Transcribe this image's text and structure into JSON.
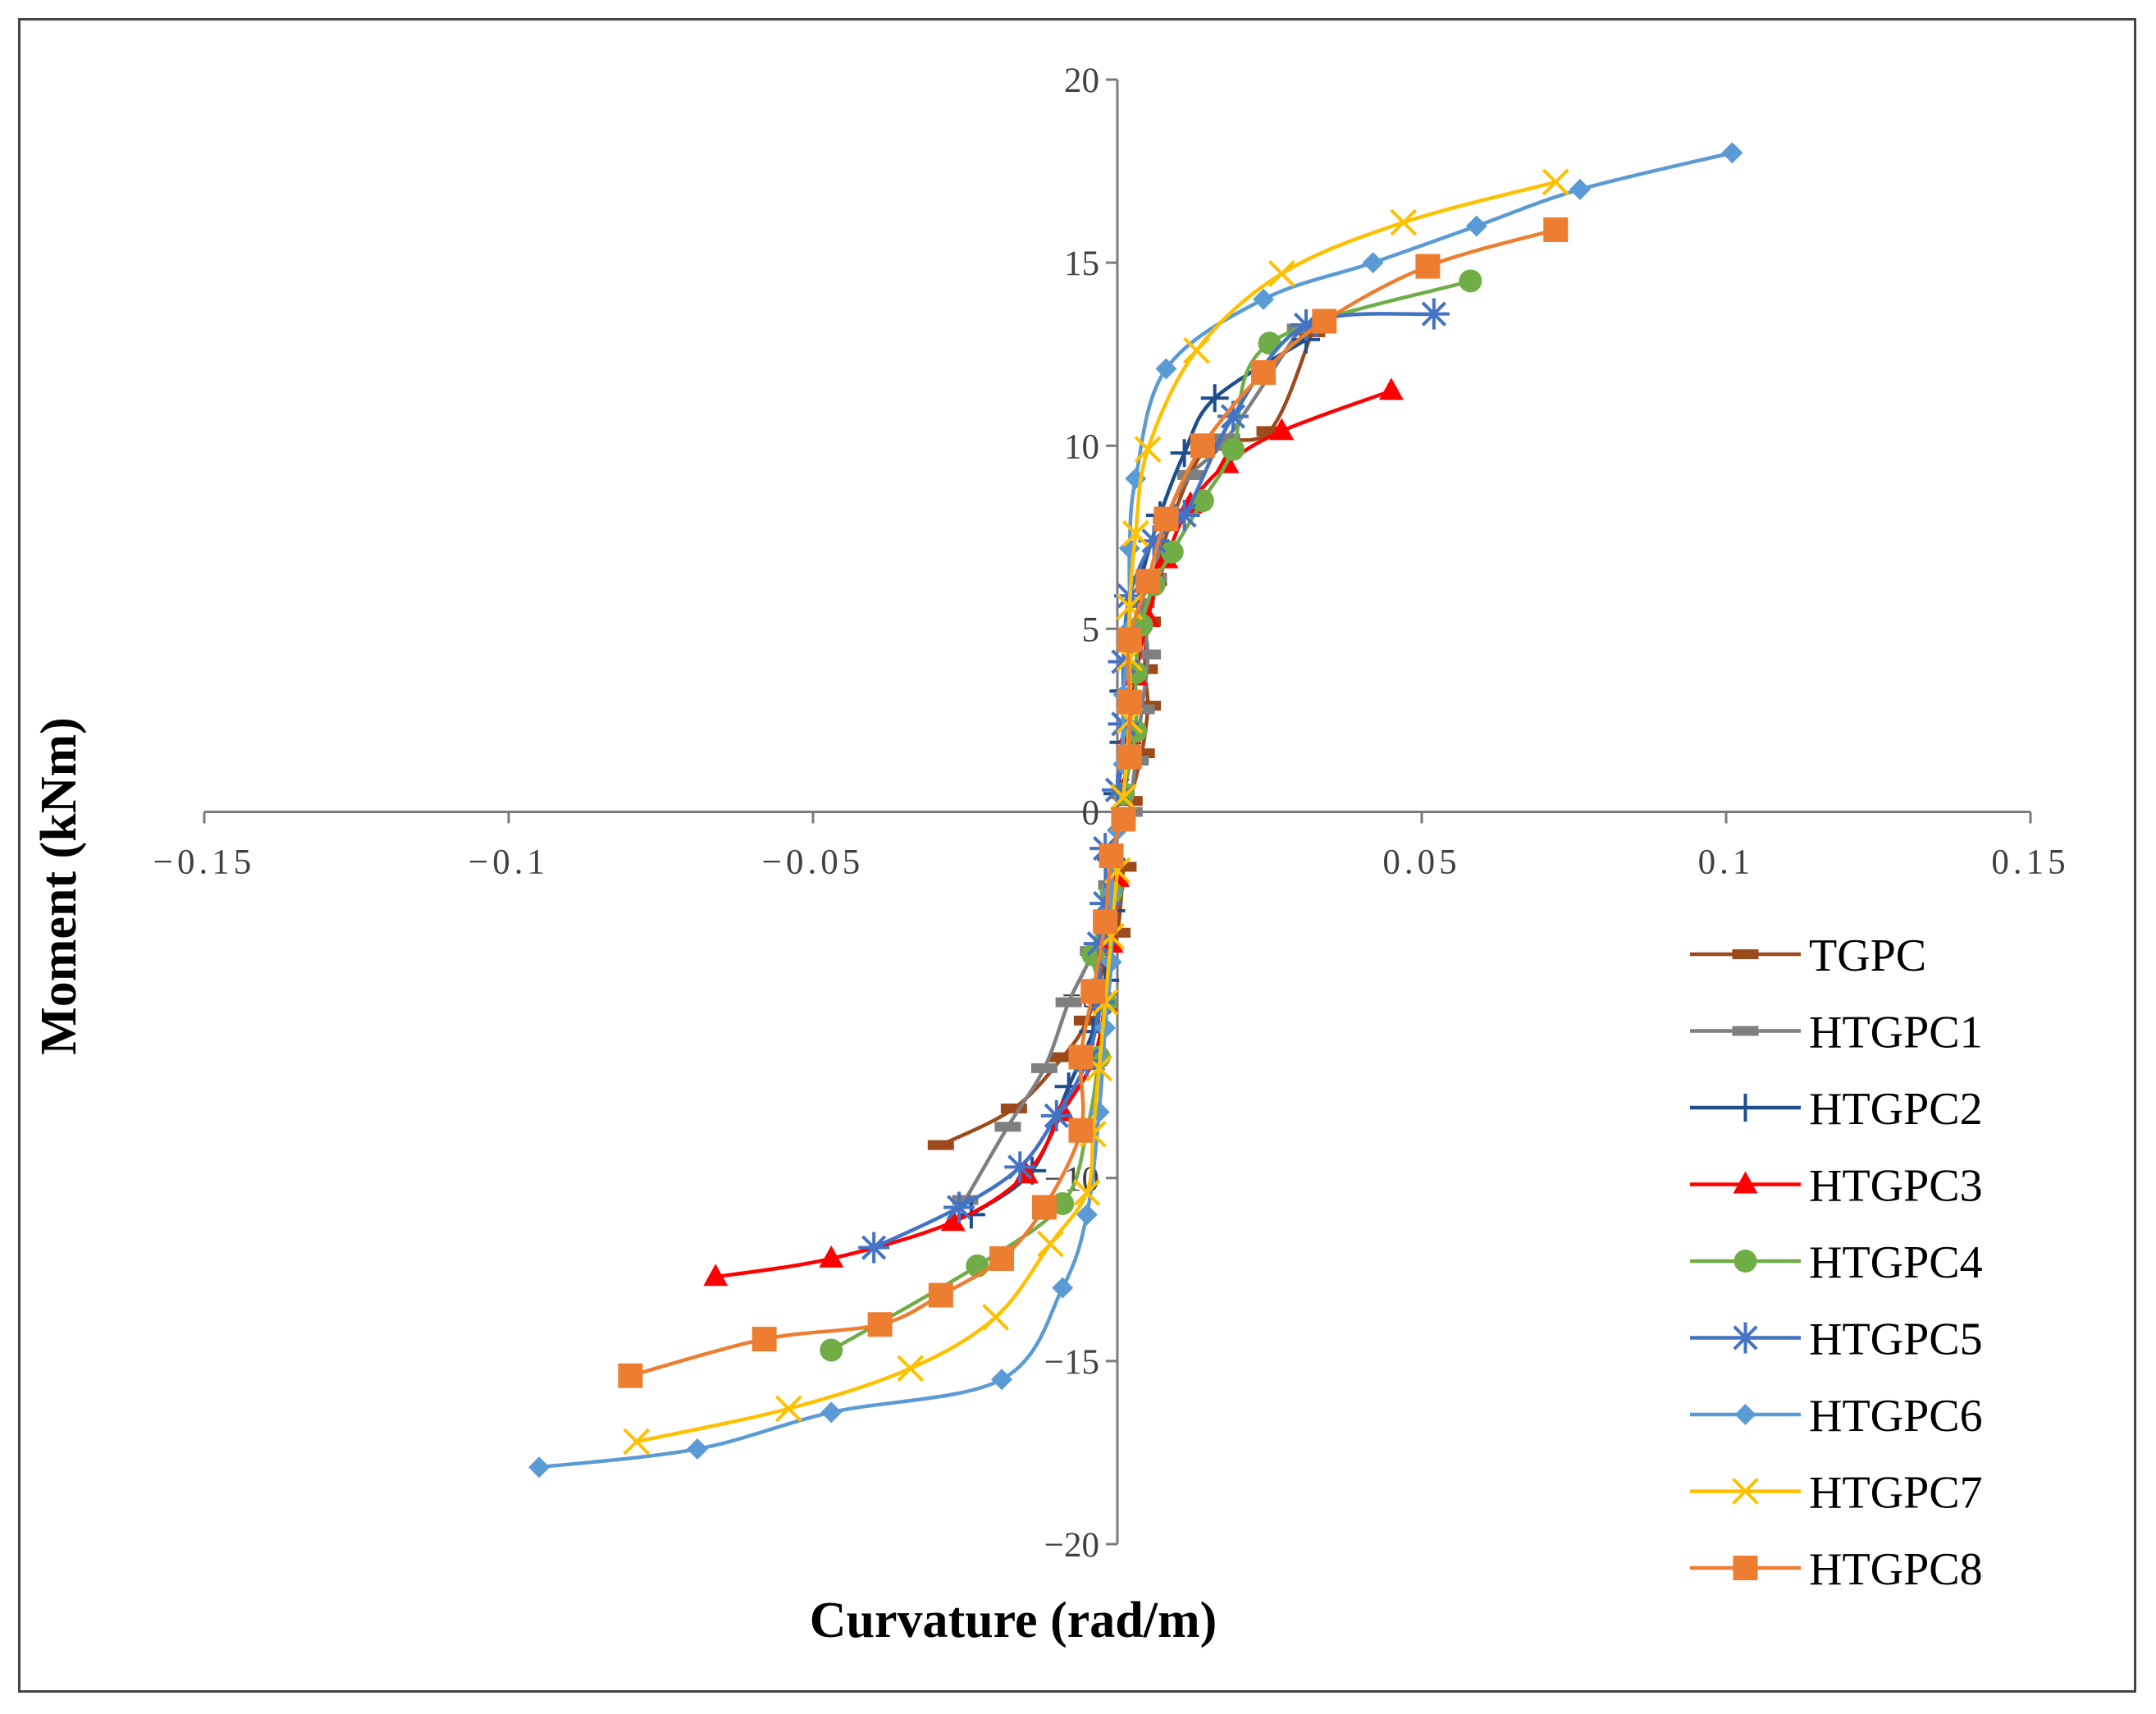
{
  "chart_data": {
    "type": "line",
    "title": "",
    "xlabel": "Curvature (rad/m)",
    "ylabel": "Moment (kNm)",
    "xlim": [
      -0.15,
      0.15
    ],
    "ylim": [
      -20,
      20
    ],
    "x_ticks": [
      -0.15,
      -0.1,
      -0.05,
      0,
      0.05,
      0.1,
      0.15
    ],
    "x_tick_labels": [
      "−0.15",
      "−0.1",
      "−0.05",
      "0",
      "0.05",
      "0.1",
      "0.15"
    ],
    "y_ticks": [
      -20,
      -15,
      -10,
      -5,
      0,
      5,
      10,
      15,
      20
    ],
    "y_tick_labels": [
      "−20",
      "−15",
      "−10",
      "−5",
      "0",
      "5",
      "10",
      "15",
      "20"
    ],
    "grid": false,
    "legend_position": "right",
    "series": [
      {
        "name": "TGPC",
        "color": "#9C4A1A",
        "marker": "dash",
        "points": [
          [
            -0.029,
            -9.1
          ],
          [
            -0.017,
            -8.1
          ],
          [
            -0.009,
            -6.7
          ],
          [
            -0.005,
            -5.7
          ],
          [
            -0.002,
            -4.1
          ],
          [
            0.0,
            -3.3
          ],
          [
            0.001,
            -1.5
          ],
          [
            0.002,
            0.3
          ],
          [
            0.004,
            1.6
          ],
          [
            0.005,
            2.9
          ],
          [
            0.0045,
            3.9
          ],
          [
            0.005,
            5.2
          ],
          [
            0.006,
            6.3
          ],
          [
            0.009,
            8.0
          ],
          [
            0.015,
            10.0
          ],
          [
            0.025,
            10.4
          ],
          [
            0.032,
            13.1
          ]
        ]
      },
      {
        "name": "HTGPC1",
        "color": "#7F7F7F",
        "marker": "dash",
        "points": [
          [
            -0.025,
            -10.6
          ],
          [
            -0.018,
            -8.6
          ],
          [
            -0.012,
            -7.0
          ],
          [
            -0.008,
            -5.2
          ],
          [
            -0.004,
            -3.8
          ],
          [
            -0.001,
            -2.0
          ],
          [
            0.002,
            0.0
          ],
          [
            0.003,
            1.4
          ],
          [
            0.004,
            2.8
          ],
          [
            0.005,
            4.3
          ],
          [
            0.004,
            5.7
          ],
          [
            0.006,
            6.4
          ],
          [
            0.008,
            8.0
          ],
          [
            0.012,
            9.2
          ],
          [
            0.018,
            10.2
          ],
          [
            0.03,
            13.2
          ]
        ]
      },
      {
        "name": "HTGPC2",
        "color": "#1F4E8C",
        "marker": "plus",
        "points": [
          [
            -0.024,
            -11.0
          ],
          [
            -0.014,
            -9.8
          ],
          [
            -0.008,
            -7.5
          ],
          [
            -0.004,
            -6.0
          ],
          [
            -0.002,
            -4.6
          ],
          [
            -0.001,
            -2.7
          ],
          [
            -0.001,
            -1.3
          ],
          [
            0.0,
            0.5
          ],
          [
            0.001,
            1.9
          ],
          [
            0.001,
            3.3
          ],
          [
            0.003,
            4.9
          ],
          [
            0.004,
            6.4
          ],
          [
            0.007,
            8.1
          ],
          [
            0.011,
            9.8
          ],
          [
            0.016,
            11.3
          ],
          [
            0.031,
            12.9
          ]
        ]
      },
      {
        "name": "HTGPC3",
        "color": "#FF0000",
        "marker": "triangle",
        "points": [
          [
            -0.066,
            -12.7
          ],
          [
            -0.047,
            -12.2
          ],
          [
            -0.027,
            -11.2
          ],
          [
            -0.015,
            -9.9
          ],
          [
            -0.009,
            -8.2
          ],
          [
            -0.004,
            -6.8
          ],
          [
            -0.002,
            -5.2
          ],
          [
            -0.001,
            -3.6
          ],
          [
            0.0,
            -1.8
          ],
          [
            0.001,
            0.6
          ],
          [
            0.002,
            2.1
          ],
          [
            0.003,
            3.7
          ],
          [
            0.005,
            5.3
          ],
          [
            0.008,
            6.9
          ],
          [
            0.012,
            8.4
          ],
          [
            0.018,
            9.5
          ],
          [
            0.027,
            10.4
          ],
          [
            0.045,
            11.5
          ]
        ]
      },
      {
        "name": "HTGPC4",
        "color": "#70AD47",
        "marker": "circle",
        "points": [
          [
            -0.047,
            -14.7
          ],
          [
            -0.023,
            -12.4
          ],
          [
            -0.009,
            -10.7
          ],
          [
            -0.005,
            -8.7
          ],
          [
            -0.003,
            -6.7
          ],
          [
            -0.002,
            -5.2
          ],
          [
            -0.004,
            -3.9
          ],
          [
            -0.001,
            -2.2
          ],
          [
            0.001,
            0.5
          ],
          [
            0.003,
            2.2
          ],
          [
            0.003,
            3.8
          ],
          [
            0.004,
            5.1
          ],
          [
            0.006,
            6.2
          ],
          [
            0.009,
            7.1
          ],
          [
            0.014,
            8.5
          ],
          [
            0.019,
            9.9
          ],
          [
            0.025,
            12.8
          ],
          [
            0.058,
            14.5
          ]
        ]
      },
      {
        "name": "HTGPC5",
        "color": "#4472C4",
        "marker": "asterisk",
        "points": [
          [
            -0.04,
            -11.9
          ],
          [
            -0.026,
            -10.8
          ],
          [
            -0.016,
            -9.7
          ],
          [
            -0.01,
            -8.3
          ],
          [
            -0.005,
            -6.8
          ],
          [
            -0.003,
            -5.2
          ],
          [
            -0.003,
            -3.6
          ],
          [
            -0.002,
            -2.5
          ],
          [
            -0.002,
            -1.0
          ],
          [
            0.0,
            0.6
          ],
          [
            0.001,
            2.4
          ],
          [
            0.001,
            4.1
          ],
          [
            0.002,
            5.9
          ],
          [
            0.006,
            7.4
          ],
          [
            0.011,
            8.1
          ],
          [
            0.019,
            10.8
          ],
          [
            0.031,
            13.3
          ],
          [
            0.052,
            13.6
          ]
        ]
      },
      {
        "name": "HTGPC6",
        "color": "#5B9BD5",
        "marker": "diamond",
        "points": [
          [
            -0.095,
            -17.9
          ],
          [
            -0.069,
            -17.4
          ],
          [
            -0.047,
            -16.4
          ],
          [
            -0.019,
            -15.5
          ],
          [
            -0.009,
            -13.0
          ],
          [
            -0.005,
            -11.0
          ],
          [
            -0.003,
            -8.2
          ],
          [
            -0.002,
            -5.9
          ],
          [
            -0.001,
            -4.1
          ],
          [
            -0.001,
            -2.2
          ],
          [
            0.0,
            -0.5
          ],
          [
            0.001,
            1.3
          ],
          [
            0.001,
            3.2
          ],
          [
            0.002,
            5.0
          ],
          [
            0.002,
            7.2
          ],
          [
            0.003,
            9.1
          ],
          [
            0.008,
            12.1
          ],
          [
            0.024,
            14.0
          ],
          [
            0.042,
            15.0
          ],
          [
            0.059,
            16.0
          ],
          [
            0.076,
            17.0
          ],
          [
            0.101,
            18.0
          ]
        ]
      },
      {
        "name": "HTGPC7",
        "color": "#FFC000",
        "marker": "x",
        "points": [
          [
            -0.079,
            -17.2
          ],
          [
            -0.054,
            -16.3
          ],
          [
            -0.034,
            -15.2
          ],
          [
            -0.02,
            -13.8
          ],
          [
            -0.011,
            -11.8
          ],
          [
            -0.005,
            -10.4
          ],
          [
            -0.004,
            -8.8
          ],
          [
            -0.003,
            -7.0
          ],
          [
            -0.002,
            -5.2
          ],
          [
            -0.001,
            -3.4
          ],
          [
            0.0,
            -1.6
          ],
          [
            0.001,
            0.4
          ],
          [
            0.002,
            2.5
          ],
          [
            0.002,
            4.2
          ],
          [
            0.002,
            5.6
          ],
          [
            0.003,
            7.6
          ],
          [
            0.005,
            9.9
          ],
          [
            0.013,
            12.6
          ],
          [
            0.027,
            14.7
          ],
          [
            0.047,
            16.1
          ],
          [
            0.072,
            17.2
          ]
        ]
      },
      {
        "name": "HTGPC8",
        "color": "#ED7D31",
        "marker": "square",
        "points": [
          [
            -0.08,
            -15.4
          ],
          [
            -0.058,
            -14.4
          ],
          [
            -0.039,
            -14.0
          ],
          [
            -0.029,
            -13.2
          ],
          [
            -0.019,
            -12.2
          ],
          [
            -0.012,
            -10.8
          ],
          [
            -0.006,
            -8.7
          ],
          [
            -0.006,
            -6.7
          ],
          [
            -0.004,
            -4.9
          ],
          [
            -0.002,
            -3.0
          ],
          [
            -0.001,
            -1.2
          ],
          [
            0.001,
            -0.2
          ],
          [
            0.002,
            1.5
          ],
          [
            0.002,
            3.0
          ],
          [
            0.002,
            4.7
          ],
          [
            0.005,
            6.3
          ],
          [
            0.008,
            8.0
          ],
          [
            0.014,
            10.0
          ],
          [
            0.024,
            12.0
          ],
          [
            0.034,
            13.4
          ],
          [
            0.051,
            14.9
          ],
          [
            0.072,
            15.9
          ]
        ]
      }
    ]
  }
}
